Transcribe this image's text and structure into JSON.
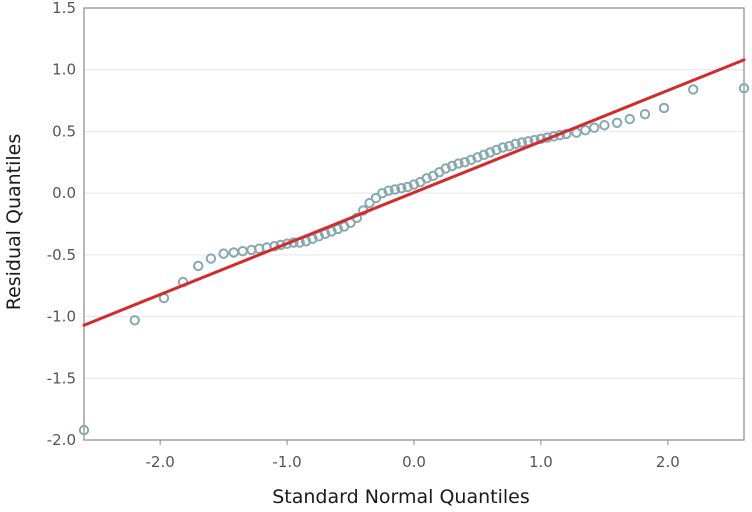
{
  "chart_data": {
    "type": "scatter",
    "title": "",
    "xlabel": "Standard Normal Quantiles",
    "ylabel": "Residual Quantiles",
    "xlim": [
      -2.6,
      2.6
    ],
    "ylim": [
      -2.0,
      1.5
    ],
    "grid": "horizontal",
    "x_ticks": [
      -2.0,
      -1.0,
      0.0,
      1.0,
      2.0
    ],
    "x_tick_labels": [
      "-2.0",
      "-1.0",
      "0.0",
      "1.0",
      "2.0"
    ],
    "y_ticks": [
      -2.0,
      -1.5,
      -1.0,
      -0.5,
      0.0,
      0.5,
      1.0,
      1.5
    ],
    "y_tick_labels": [
      "-2.0",
      "-1.5",
      "-1.0",
      "-0.5",
      "0.0",
      "0.5",
      "1.0",
      "1.5"
    ],
    "colors": {
      "points": "#86a9b0",
      "reference_line": "#d42a2a",
      "frame": "#8a8a8a",
      "grid": "#e4e4e4"
    },
    "reference_line": {
      "x": [
        -2.6,
        2.6
      ],
      "y": [
        -1.07,
        1.08
      ]
    },
    "points": {
      "x": [
        -2.6,
        -2.2,
        -1.97,
        -1.82,
        -1.7,
        -1.6,
        -1.5,
        -1.42,
        -1.35,
        -1.28,
        -1.22,
        -1.16,
        -1.1,
        -1.05,
        -1.0,
        -0.95,
        -0.9,
        -0.85,
        -0.8,
        -0.75,
        -0.7,
        -0.65,
        -0.6,
        -0.55,
        -0.5,
        -0.45,
        -0.4,
        -0.35,
        -0.3,
        -0.25,
        -0.2,
        -0.15,
        -0.1,
        -0.05,
        0.0,
        0.05,
        0.1,
        0.15,
        0.2,
        0.25,
        0.3,
        0.35,
        0.4,
        0.45,
        0.5,
        0.55,
        0.6,
        0.65,
        0.7,
        0.75,
        0.8,
        0.85,
        0.9,
        0.95,
        1.0,
        1.05,
        1.1,
        1.15,
        1.2,
        1.28,
        1.35,
        1.42,
        1.5,
        1.6,
        1.7,
        1.82,
        1.97,
        2.2,
        2.6
      ],
      "y": [
        -1.92,
        -1.03,
        -0.85,
        -0.72,
        -0.59,
        -0.53,
        -0.49,
        -0.48,
        -0.47,
        -0.46,
        -0.45,
        -0.44,
        -0.43,
        -0.42,
        -0.41,
        -0.4,
        -0.4,
        -0.39,
        -0.37,
        -0.35,
        -0.33,
        -0.31,
        -0.29,
        -0.27,
        -0.24,
        -0.2,
        -0.14,
        -0.08,
        -0.04,
        0.0,
        0.02,
        0.03,
        0.04,
        0.05,
        0.07,
        0.09,
        0.12,
        0.14,
        0.17,
        0.2,
        0.22,
        0.24,
        0.25,
        0.27,
        0.29,
        0.31,
        0.33,
        0.35,
        0.37,
        0.38,
        0.4,
        0.41,
        0.42,
        0.43,
        0.44,
        0.45,
        0.46,
        0.47,
        0.48,
        0.49,
        0.51,
        0.53,
        0.55,
        0.57,
        0.6,
        0.64,
        0.69,
        0.84,
        0.85
      ]
    }
  }
}
